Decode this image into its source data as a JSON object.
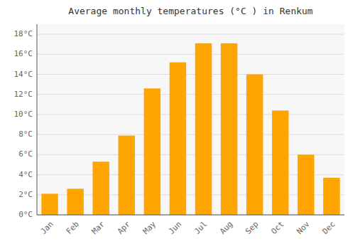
{
  "chart_data": {
    "type": "bar",
    "title": "Average monthly temperatures (°C ) in Renkum",
    "categories": [
      "Jan",
      "Feb",
      "Mar",
      "Apr",
      "May",
      "Jun",
      "Jul",
      "Aug",
      "Sep",
      "Oct",
      "Nov",
      "Dec"
    ],
    "values": [
      2.1,
      2.6,
      5.3,
      7.9,
      12.6,
      15.2,
      17.1,
      17.1,
      14.0,
      10.4,
      6.0,
      3.7
    ],
    "color": "#FFA500",
    "ylim": [
      0,
      19
    ],
    "yticks": [
      {
        "value": 0,
        "label": "0°C"
      },
      {
        "value": 2,
        "label": "2°C"
      },
      {
        "value": 4,
        "label": "4°C"
      },
      {
        "value": 6,
        "label": "6°C"
      },
      {
        "value": 8,
        "label": "8°C"
      },
      {
        "value": 10,
        "label": "10°C"
      },
      {
        "value": 12,
        "label": "12°C"
      },
      {
        "value": 14,
        "label": "14°C"
      },
      {
        "value": 16,
        "label": "16°C"
      },
      {
        "value": 18,
        "label": "18°C"
      }
    ],
    "grid": true
  }
}
